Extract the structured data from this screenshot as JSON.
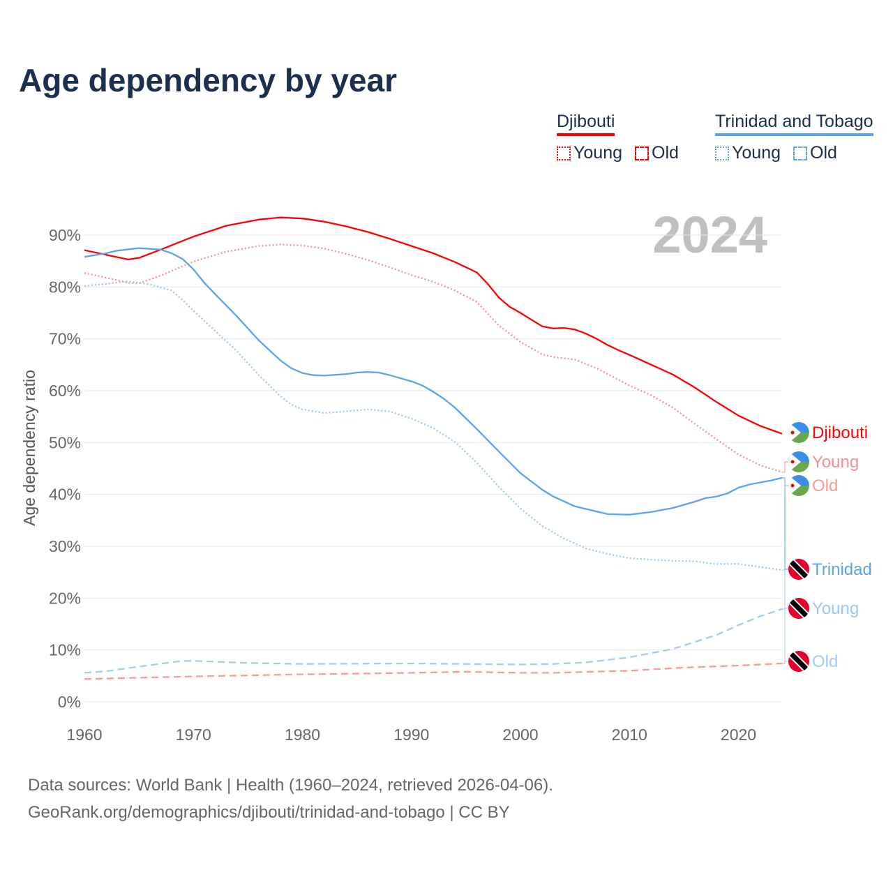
{
  "title": "Age dependency by year",
  "legend": {
    "groups": [
      {
        "name": "Djibouti",
        "color": "#ff0000",
        "young_color": "#ff0000",
        "items": [
          "Young",
          "Old"
        ]
      },
      {
        "name": "Trinidad and Tobago",
        "color": "#5aa4eb",
        "items": [
          "Young",
          "Old"
        ]
      }
    ]
  },
  "year_label": "2024",
  "footer": {
    "line1": "Data sources: World Bank | Health (1960–2024, retrieved 2026-04-06).",
    "line2": "GeoRank.org/demographics/djibouti/trinidad-and-tobago | CC BY"
  },
  "chart_data": {
    "type": "line",
    "title": "Age dependency by year",
    "xlabel": "",
    "ylabel": "Age dependency ratio",
    "xlim": [
      1960,
      2024
    ],
    "ylim": [
      0,
      90
    ],
    "x_ticks": [
      "1960",
      "1970",
      "1980",
      "1990",
      "2000",
      "2010",
      "2020"
    ],
    "y_ticks": [
      "0%",
      "10%",
      "20%",
      "30%",
      "40%",
      "50%",
      "60%",
      "70%",
      "80%",
      "90%"
    ],
    "grid": true,
    "series": [
      {
        "name": "Djibouti",
        "end_label": "Djibouti",
        "flag": "djibouti",
        "color": "#ff0000",
        "style": "solid",
        "x": [
          1960,
          1962,
          1964,
          1965,
          1967,
          1970,
          1973,
          1976,
          1978,
          1980,
          1982,
          1984,
          1986,
          1988,
          1990,
          1992,
          1994,
          1996,
          1997,
          1998,
          1999,
          2000,
          2001,
          2002,
          2003,
          2004,
          2005,
          2006,
          2007,
          2008,
          2009,
          2010,
          2012,
          2014,
          2016,
          2018,
          2020,
          2022,
          2024
        ],
        "y": [
          87.1,
          86.2,
          85.3,
          85.6,
          87.2,
          89.7,
          91.8,
          93.0,
          93.4,
          93.2,
          92.6,
          91.7,
          90.6,
          89.3,
          87.9,
          86.5,
          84.8,
          82.8,
          80.6,
          78.0,
          76.2,
          75.0,
          73.7,
          72.4,
          72.0,
          72.1,
          71.8,
          71.0,
          70.0,
          68.8,
          67.8,
          66.9,
          65.0,
          63.1,
          60.6,
          57.8,
          55.2,
          53.2,
          51.7
        ]
      },
      {
        "name": "Djibouti Young",
        "end_label": "Young",
        "flag": "djibouti",
        "color": "#fa8f8f",
        "style": "dotted",
        "x": [
          1960,
          1962,
          1964,
          1965,
          1967,
          1970,
          1973,
          1976,
          1978,
          1980,
          1982,
          1984,
          1986,
          1988,
          1990,
          1992,
          1994,
          1996,
          1998,
          2000,
          2002,
          2003,
          2005,
          2007,
          2010,
          2012,
          2014,
          2016,
          2018,
          2020,
          2022,
          2024
        ],
        "y": [
          82.7,
          81.8,
          80.8,
          80.7,
          82.2,
          84.9,
          86.8,
          87.9,
          88.2,
          88.0,
          87.4,
          86.4,
          85.2,
          83.8,
          82.3,
          81.0,
          79.3,
          77.1,
          72.6,
          69.4,
          67.0,
          66.5,
          66.0,
          64.3,
          61.0,
          59.1,
          56.7,
          53.6,
          50.6,
          47.7,
          45.6,
          44.3
        ]
      },
      {
        "name": "Djibouti Old",
        "end_label": "Old",
        "flag": "djibouti",
        "color": "#fa9a9a",
        "style": "dashed",
        "x": [
          1960,
          1970,
          1980,
          1990,
          1995,
          2000,
          2003,
          2010,
          2015,
          2020,
          2024
        ],
        "y": [
          4.4,
          4.9,
          5.3,
          5.6,
          5.8,
          5.6,
          5.6,
          6.0,
          6.6,
          7.0,
          7.4
        ]
      },
      {
        "name": "Trinidad and Tobago",
        "end_label": "Trinidad",
        "flag": "trinidad",
        "color": "#5aa4eb",
        "style": "solid",
        "x": [
          1960,
          1962,
          1963,
          1965,
          1967,
          1968,
          1969,
          1970,
          1971,
          1972,
          1974,
          1976,
          1978,
          1979,
          1980,
          1981,
          1982,
          1984,
          1985,
          1986,
          1987,
          1988,
          1990,
          1991,
          1992,
          1993,
          1994,
          1996,
          1998,
          2000,
          2002,
          2003,
          2005,
          2007,
          2008,
          2010,
          2012,
          2014,
          2016,
          2017,
          2018,
          2019,
          2020,
          2021,
          2023,
          2024
        ],
        "y": [
          85.8,
          86.5,
          87.0,
          87.5,
          87.2,
          86.5,
          85.4,
          83.4,
          80.8,
          78.6,
          74.3,
          69.7,
          65.8,
          64.3,
          63.4,
          63.0,
          62.9,
          63.2,
          63.5,
          63.6,
          63.5,
          63.0,
          61.8,
          61.0,
          59.8,
          58.4,
          56.7,
          52.6,
          48.3,
          44.1,
          40.9,
          39.6,
          37.7,
          36.7,
          36.2,
          36.1,
          36.6,
          37.4,
          38.6,
          39.3,
          39.6,
          40.2,
          41.3,
          41.9,
          42.7,
          43.2
        ]
      },
      {
        "name": "Trinidad and Tobago Young",
        "end_label": "Young",
        "flag": "trinidad",
        "color": "#9cc7f2",
        "style": "dotted",
        "x": [
          1960,
          1962,
          1964,
          1966,
          1968,
          1969,
          1970,
          1972,
          1974,
          1976,
          1978,
          1979,
          1980,
          1982,
          1984,
          1986,
          1988,
          1990,
          1992,
          1994,
          1996,
          1998,
          2000,
          2002,
          2004,
          2006,
          2008,
          2010,
          2012,
          2014,
          2016,
          2018,
          2020,
          2022,
          2024
        ],
        "y": [
          80.2,
          80.6,
          81.1,
          80.5,
          79.3,
          77.5,
          75.4,
          71.5,
          67.6,
          63.0,
          58.9,
          57.3,
          56.4,
          55.7,
          56.0,
          56.4,
          56.0,
          54.6,
          52.8,
          50.1,
          46.1,
          41.5,
          37.3,
          33.9,
          31.5,
          29.6,
          28.5,
          27.7,
          27.4,
          27.2,
          27.1,
          26.6,
          26.6,
          26.0,
          25.4
        ]
      },
      {
        "name": "Trinidad and Tobago Old",
        "end_label": "Old",
        "flag": "trinidad",
        "color": "#a3cbf3",
        "style": "dashed",
        "x": [
          1960,
          1962,
          1965,
          1969,
          1970,
          1975,
          1980,
          1990,
          2000,
          2003,
          2006,
          2010,
          2014,
          2018,
          2020,
          2022,
          2024
        ],
        "y": [
          5.6,
          5.9,
          6.8,
          7.9,
          7.9,
          7.5,
          7.3,
          7.4,
          7.2,
          7.3,
          7.6,
          8.6,
          10.2,
          12.9,
          14.8,
          16.5,
          17.9
        ]
      }
    ]
  }
}
